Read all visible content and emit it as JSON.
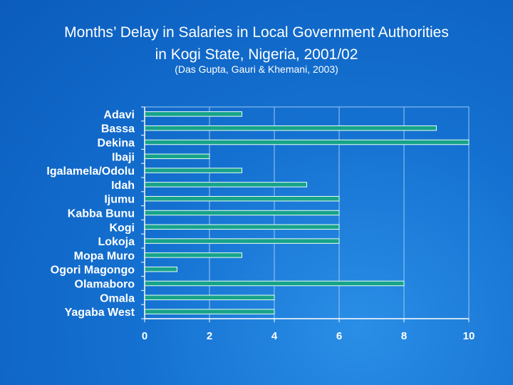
{
  "title_line1": "Months’ Delay in Salaries in Local Government Authorities",
  "title_line2": "in Kogi State, Nigeria, 2001/02",
  "subtitle": "(Das Gupta, Gauri & Khemani, 2003)",
  "colors": {
    "bar_fill": "#17a38a",
    "bar_stroke": "#e8fff8",
    "axis": "#ffffff",
    "grid": "#9ec8f0"
  },
  "chart_data": {
    "type": "bar",
    "orientation": "horizontal",
    "categories": [
      "Adavi",
      "Bassa",
      "Dekina",
      "Ibaji",
      "Igalamela/Odolu",
      "Idah",
      "Ijumu",
      "Kabba Bunu",
      "Kogi",
      "Lokoja",
      "Mopa Muro",
      "Ogori Magongo",
      "Olamaboro",
      "Omala",
      "Yagaba West"
    ],
    "values": [
      3,
      9,
      10,
      2,
      3,
      5,
      6,
      6,
      6,
      6,
      3,
      1,
      8,
      4,
      4
    ],
    "xlim": [
      0,
      10
    ],
    "xticks": [
      "0",
      "2",
      "4",
      "6",
      "8",
      "10"
    ],
    "grid": true,
    "title": "Months’ Delay in Salaries in Local Government Authorities in Kogi State, Nigeria, 2001/02"
  }
}
